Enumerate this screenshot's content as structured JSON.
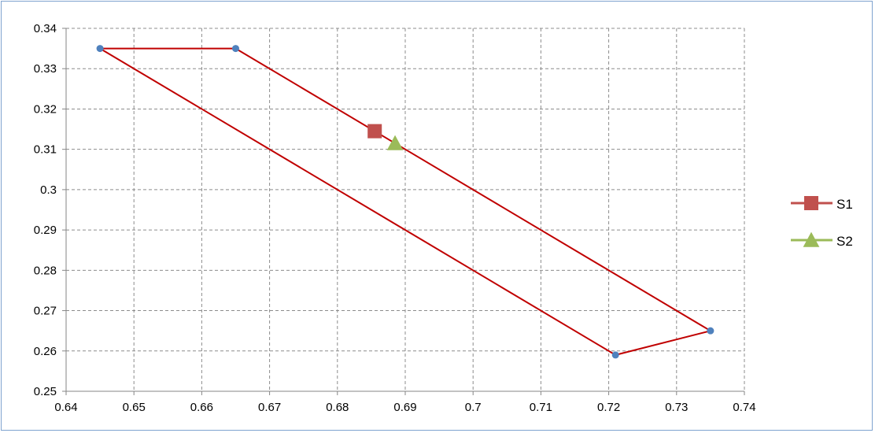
{
  "chart_data": {
    "type": "scatter",
    "title": "",
    "xlabel": "",
    "ylabel": "",
    "xlim": [
      0.64,
      0.74
    ],
    "ylim": [
      0.25,
      0.34
    ],
    "x_ticks": [
      "0.64",
      "0.65",
      "0.66",
      "0.67",
      "0.68",
      "0.69",
      "0.7",
      "0.71",
      "0.72",
      "0.73",
      "0.74"
    ],
    "y_ticks": [
      "0.25",
      "0.26",
      "0.27",
      "0.28",
      "0.29",
      "0.3",
      "0.31",
      "0.32",
      "0.33",
      "0.34"
    ],
    "grid": true,
    "legend_position": "right",
    "boundary": {
      "color": "#c00000",
      "vertex_color": "#4f81bd",
      "points": [
        {
          "x": 0.645,
          "y": 0.335
        },
        {
          "x": 0.665,
          "y": 0.335
        },
        {
          "x": 0.735,
          "y": 0.265
        },
        {
          "x": 0.721,
          "y": 0.259
        },
        {
          "x": 0.645,
          "y": 0.335
        }
      ]
    },
    "series": [
      {
        "name": "S1",
        "marker": "square",
        "color": "#c0504d",
        "x": 0.6855,
        "y": 0.3145
      },
      {
        "name": "S2",
        "marker": "triangle",
        "color": "#9bbb59",
        "x": 0.6885,
        "y": 0.3115
      }
    ]
  }
}
